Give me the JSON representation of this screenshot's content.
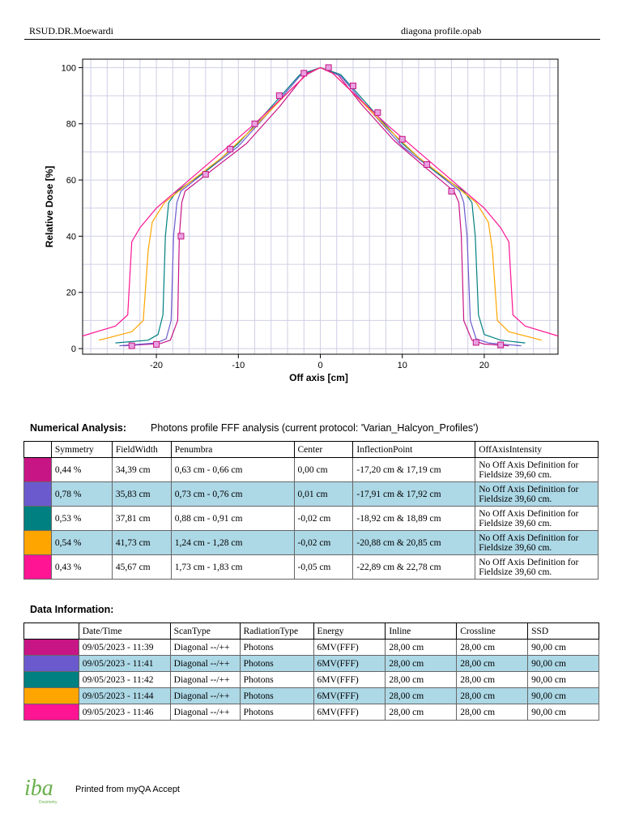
{
  "header": {
    "left": "RSUD.DR.Moewardi",
    "right": "diagona profile.opab"
  },
  "chart_data": {
    "type": "line",
    "xlabel": "Off axis [cm]",
    "ylabel": "Relative Dose [%]",
    "xlim": [
      -29,
      29
    ],
    "ylim": [
      -2,
      103
    ],
    "xticks": [
      -20,
      -10,
      0,
      10,
      20
    ],
    "yticks": [
      0,
      20,
      40,
      60,
      80,
      100
    ],
    "grid": true,
    "series": [
      {
        "color": "#c71585",
        "points": [
          [
            -24,
            1
          ],
          [
            -19.5,
            1.8
          ],
          [
            -18.3,
            3
          ],
          [
            -17.4,
            10
          ],
          [
            -17.2,
            40
          ],
          [
            -16.9,
            52
          ],
          [
            -16.5,
            56
          ],
          [
            -13,
            64
          ],
          [
            -9,
            73
          ],
          [
            -5,
            86
          ],
          [
            -2,
            97
          ],
          [
            0,
            100
          ],
          [
            2,
            98
          ],
          [
            5,
            87
          ],
          [
            9,
            74
          ],
          [
            13,
            64
          ],
          [
            16.3,
            56
          ],
          [
            16.9,
            52
          ],
          [
            17.2,
            40
          ],
          [
            17.5,
            10
          ],
          [
            18.5,
            3
          ],
          [
            20,
            1.6
          ],
          [
            23,
            1
          ]
        ],
        "marks": [
          [
            -23,
            1
          ],
          [
            -20,
            1.5
          ],
          [
            -17,
            40
          ],
          [
            -14,
            62
          ],
          [
            -11,
            71
          ],
          [
            -8,
            80
          ],
          [
            -5,
            90
          ],
          [
            -2,
            98
          ],
          [
            1,
            100
          ],
          [
            4,
            93.5
          ],
          [
            7,
            84
          ],
          [
            10,
            74.5
          ],
          [
            13,
            65.5
          ],
          [
            16,
            56
          ],
          [
            19,
            2.2
          ],
          [
            22,
            1.3
          ]
        ]
      },
      {
        "color": "#6a5acd",
        "points": [
          [
            -24.5,
            1
          ],
          [
            -20,
            2
          ],
          [
            -18.8,
            3.5
          ],
          [
            -18.2,
            10
          ],
          [
            -17.9,
            40
          ],
          [
            -17.5,
            52
          ],
          [
            -17,
            56
          ],
          [
            -14,
            63
          ],
          [
            -10,
            72
          ],
          [
            -6,
            85
          ],
          [
            -2.5,
            97
          ],
          [
            0,
            100
          ],
          [
            2.5,
            97
          ],
          [
            6,
            85
          ],
          [
            10,
            72
          ],
          [
            14,
            63
          ],
          [
            17,
            56
          ],
          [
            17.5,
            52
          ],
          [
            17.9,
            40
          ],
          [
            18.3,
            10
          ],
          [
            19,
            3.5
          ],
          [
            20.5,
            2
          ],
          [
            24.5,
            1
          ]
        ],
        "marks": []
      },
      {
        "color": "#008080",
        "points": [
          [
            -25,
            2
          ],
          [
            -21,
            3
          ],
          [
            -19.8,
            5
          ],
          [
            -19.2,
            12
          ],
          [
            -18.9,
            40
          ],
          [
            -18.5,
            52
          ],
          [
            -17.5,
            56
          ],
          [
            -14,
            63
          ],
          [
            -10,
            73
          ],
          [
            -6,
            86
          ],
          [
            -2.5,
            97.5
          ],
          [
            0,
            100
          ],
          [
            2.5,
            97.5
          ],
          [
            6,
            86
          ],
          [
            10,
            73
          ],
          [
            14,
            63
          ],
          [
            17.5,
            56
          ],
          [
            18.5,
            52
          ],
          [
            18.9,
            40
          ],
          [
            19.3,
            12
          ],
          [
            20,
            5
          ],
          [
            22,
            3
          ],
          [
            25,
            2
          ]
        ],
        "marks": []
      },
      {
        "color": "#ffa500",
        "points": [
          [
            -27,
            3
          ],
          [
            -23,
            6
          ],
          [
            -21.6,
            10
          ],
          [
            -21,
            35
          ],
          [
            -20.5,
            45
          ],
          [
            -19,
            52
          ],
          [
            -16,
            59
          ],
          [
            -12,
            68
          ],
          [
            -8,
            79
          ],
          [
            -4,
            91
          ],
          [
            -1.5,
            98
          ],
          [
            0,
            100
          ],
          [
            1.5,
            98
          ],
          [
            4,
            91
          ],
          [
            8,
            79
          ],
          [
            12,
            68
          ],
          [
            16,
            59
          ],
          [
            19,
            52
          ],
          [
            20.5,
            45
          ],
          [
            21,
            35
          ],
          [
            21.6,
            10
          ],
          [
            23,
            6
          ],
          [
            27,
            3
          ]
        ],
        "marks": []
      },
      {
        "color": "#ff1493",
        "points": [
          [
            -29,
            4.5
          ],
          [
            -25,
            8
          ],
          [
            -23.5,
            12
          ],
          [
            -23,
            38
          ],
          [
            -22,
            43
          ],
          [
            -20,
            50
          ],
          [
            -16,
            60
          ],
          [
            -12,
            70
          ],
          [
            -8,
            80
          ],
          [
            -4,
            91
          ],
          [
            -1.5,
            98
          ],
          [
            0,
            100
          ],
          [
            1.5,
            98
          ],
          [
            4,
            91
          ],
          [
            8,
            80
          ],
          [
            12,
            70
          ],
          [
            16,
            60
          ],
          [
            20,
            50
          ],
          [
            22,
            43
          ],
          [
            23,
            38
          ],
          [
            23.5,
            12
          ],
          [
            25,
            8
          ],
          [
            29,
            4.5
          ]
        ],
        "marks": []
      }
    ]
  },
  "numerical": {
    "title": "Numerical Analysis:",
    "protocol": "Photons profile FFF analysis (current protocol: 'Varian_Halcyon_Profiles')",
    "headers": [
      "",
      "Symmetry",
      "FieldWidth",
      "Penumbra",
      "Center",
      "InflectionPoint",
      "OffAxisIntensity"
    ],
    "rows": [
      {
        "color": "#c71585",
        "symmetry": "0,44 %",
        "fieldwidth": "34,39 cm",
        "penumbra": "0,63 cm - 0,66 cm",
        "center": "0,00 cm",
        "inflection": "-17,20 cm & 17,19 cm",
        "oai": "No Off Axis Definition for Fieldsize 39,60 cm."
      },
      {
        "color": "#6a5acd",
        "symmetry": "0,78 %",
        "fieldwidth": "35,83 cm",
        "penumbra": "0,73 cm - 0,76 cm",
        "center": "0,01 cm",
        "inflection": "-17,91 cm & 17,92 cm",
        "oai": "No Off Axis Definition for Fieldsize 39,60 cm."
      },
      {
        "color": "#008080",
        "symmetry": "0,53 %",
        "fieldwidth": "37,81 cm",
        "penumbra": "0,88 cm - 0,91 cm",
        "center": "-0,02 cm",
        "inflection": "-18,92 cm & 18,89 cm",
        "oai": "No Off Axis Definition for Fieldsize 39,60 cm."
      },
      {
        "color": "#ffa500",
        "symmetry": "0,54 %",
        "fieldwidth": "41,73 cm",
        "penumbra": "1,24 cm - 1,28 cm",
        "center": "-0,02 cm",
        "inflection": "-20,88 cm & 20,85 cm",
        "oai": "No Off Axis Definition for Fieldsize 39,60 cm."
      },
      {
        "color": "#ff1493",
        "symmetry": "0,43 %",
        "fieldwidth": "45,67 cm",
        "penumbra": "1,73 cm - 1,83 cm",
        "center": "-0,05 cm",
        "inflection": "-22,89 cm & 22,78 cm",
        "oai": "No Off Axis Definition for Fieldsize 39,60 cm."
      }
    ]
  },
  "datainfo": {
    "title": "Data Information:",
    "headers": [
      "",
      "Date/Time",
      "ScanType",
      "RadiationType",
      "Energy",
      "Inline",
      "Crossline",
      "SSD"
    ],
    "rows": [
      {
        "color": "#c71585",
        "datetime": "09/05/2023 - 11:39",
        "scantype": "Diagonal --/++",
        "radiation": "Photons",
        "energy": "6MV(FFF)",
        "inline": "28,00 cm",
        "crossline": "28,00 cm",
        "ssd": "90,00 cm"
      },
      {
        "color": "#6a5acd",
        "datetime": "09/05/2023 - 11:41",
        "scantype": "Diagonal --/++",
        "radiation": "Photons",
        "energy": "6MV(FFF)",
        "inline": "28,00 cm",
        "crossline": "28,00 cm",
        "ssd": "90,00 cm"
      },
      {
        "color": "#008080",
        "datetime": "09/05/2023 - 11:42",
        "scantype": "Diagonal --/++",
        "radiation": "Photons",
        "energy": "6MV(FFF)",
        "inline": "28,00 cm",
        "crossline": "28,00 cm",
        "ssd": "90,00 cm"
      },
      {
        "color": "#ffa500",
        "datetime": "09/05/2023 - 11:44",
        "scantype": "Diagonal --/++",
        "radiation": "Photons",
        "energy": "6MV(FFF)",
        "inline": "28,00 cm",
        "crossline": "28,00 cm",
        "ssd": "90,00 cm"
      },
      {
        "color": "#ff1493",
        "datetime": "09/05/2023 - 11:46",
        "scantype": "Diagonal --/++",
        "radiation": "Photons",
        "energy": "6MV(FFF)",
        "inline": "28,00 cm",
        "crossline": "28,00 cm",
        "ssd": "90,00 cm"
      }
    ]
  },
  "footer": {
    "logo": "iba",
    "logo_sub": "Dosimetry",
    "text": "Printed from myQA Accept",
    "logo_color": "#6ab04c"
  }
}
